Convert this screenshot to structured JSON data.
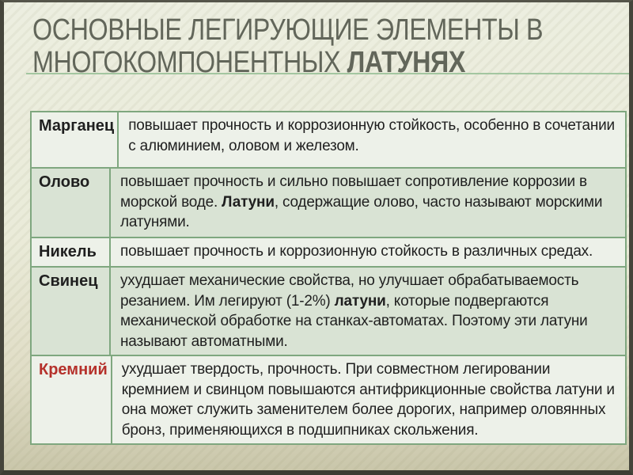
{
  "slide": {
    "title": {
      "line1": "ОСНОВНЫЕ ЛЕГИРУЮЩИЕ ЭЛЕМЕНТЫ В",
      "line2_regular": "МНОГОКОМПОНЕНТНЫХ",
      "line2_bold": "ЛАТУНЯХ"
    },
    "colors": {
      "title_text": "#62665a",
      "accent_line_green": "#a3c6a0",
      "table_border_green": "#7fa77f",
      "row_background_light": "#edf1e9",
      "row_background_dark": "#d9e3d4",
      "body_text": "#1f1f1f",
      "highlight_red": "#b5312b",
      "frame_dark": "#45453b"
    }
  },
  "table": {
    "rows": [
      {
        "element": "Марганец",
        "element_red": false,
        "description": [
          {
            "text": "повышает прочность и коррозионную стойкость, особенно в сочетании с алюминием, оловом и железом.",
            "bold": false
          }
        ]
      },
      {
        "element": "Олово",
        "element_red": false,
        "description": [
          {
            "text": "повышает прочность и сильно повышает сопротивление коррозии в морской воде. ",
            "bold": false
          },
          {
            "text": "Латуни",
            "bold": true
          },
          {
            "text": ", содержащие олово, часто называют морскими латунями.",
            "bold": false
          }
        ]
      },
      {
        "element": "Никель",
        "element_red": false,
        "description": [
          {
            "text": "повышает прочность и коррозионную стойкость в различных средах.",
            "bold": false
          }
        ]
      },
      {
        "element": "Свинец",
        "element_red": false,
        "description": [
          {
            "text": "ухудшает механические свойства, но улучшает обрабатываемость резанием. Им легируют (1-2%) ",
            "bold": false
          },
          {
            "text": "латуни",
            "bold": true
          },
          {
            "text": ", которые подвергаются механической обработке на станках-автоматах. Поэтому эти латуни называют автоматными.",
            "bold": false
          }
        ]
      },
      {
        "element": "Кремний",
        "element_red": true,
        "description": [
          {
            "text": "ухудшает твердость, прочность. При совместном легировании кремнием и свинцом повышаются антифрикционные свойства латуни и она может служить заменителем более дорогих, например оловянных бронз, применяющихся в подшипниках скольжения.",
            "bold": false
          }
        ]
      }
    ]
  }
}
